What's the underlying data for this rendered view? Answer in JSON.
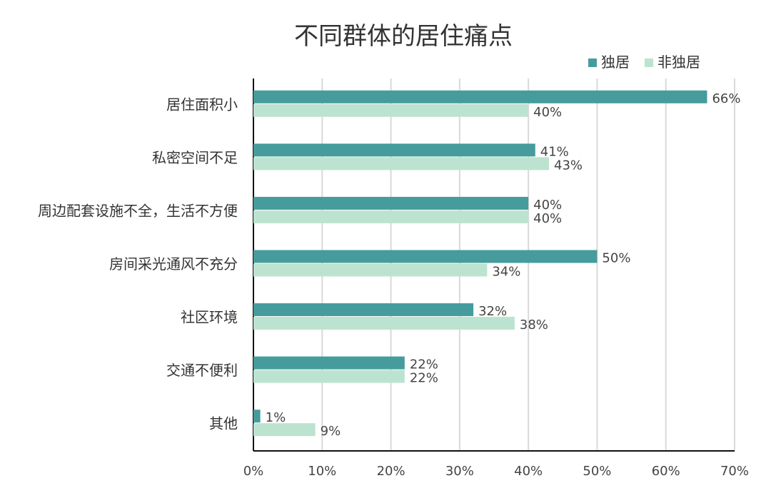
{
  "chart_data": {
    "type": "bar",
    "orientation": "horizontal",
    "title": "不同群体的居住痛点",
    "categories": [
      "居住面积小",
      "私密空间不足",
      "周边配套设施不全，生活不方便",
      "房间采光通风不充分",
      "社区环境",
      "交通不便利",
      "其他"
    ],
    "series": [
      {
        "name": "独居",
        "color": "#469c9c",
        "values": [
          66,
          41,
          40,
          50,
          32,
          22,
          1
        ],
        "labels": [
          "66%",
          "41%",
          "40%",
          "50%",
          "32%",
          "22%",
          "1%"
        ]
      },
      {
        "name": "非独居",
        "color": "#bce3cf",
        "values": [
          40,
          43,
          40,
          34,
          38,
          22,
          9
        ],
        "labels": [
          "40%",
          "43%",
          "40%",
          "34%",
          "38%",
          "22%",
          "9%"
        ]
      }
    ],
    "xlim": [
      0,
      70
    ],
    "xticks": [
      0,
      10,
      20,
      30,
      40,
      50,
      60,
      70
    ],
    "xtick_labels": [
      "0%",
      "10%",
      "20%",
      "30%",
      "40%",
      "50%",
      "60%",
      "70%"
    ],
    "grid": true,
    "legend": "top-right"
  }
}
